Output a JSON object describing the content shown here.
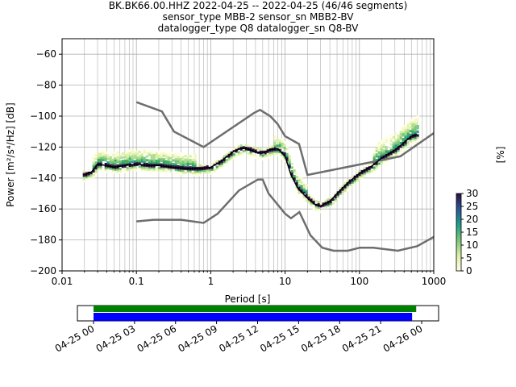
{
  "header": {
    "line1": "BK.BK66.00.HHZ   2022-04-25 -- 2022-04-25  (46/46 segments)",
    "line2": "sensor_type MBB-2 sensor_sn MBB2-BV",
    "line3": "datalogger_type Q8 datalogger_sn Q8-BV"
  },
  "chart_data": [
    {
      "type": "heatmap",
      "xlabel": "Period [s]",
      "ylabel": "Power [m²/s⁴/Hz] [dB]",
      "xscale": "log",
      "xlim": [
        0.01,
        1000
      ],
      "ylim": [
        -200,
        -50
      ],
      "x_ticks": [
        "0.01",
        "0.1",
        "1",
        "10",
        "100",
        "1000"
      ],
      "y_ticks": [
        "−60",
        "−80",
        "−100",
        "−120",
        "−140",
        "−160",
        "−180",
        "−200"
      ],
      "grid": true,
      "colorbar": {
        "label": "[%]",
        "range": [
          0,
          30
        ],
        "ticks": [
          "0",
          "5",
          "10",
          "15",
          "20",
          "25",
          "30"
        ]
      },
      "mean_curve": {
        "x": [
          0.02,
          0.025,
          0.03,
          0.04,
          0.05,
          0.07,
          0.1,
          0.15,
          0.2,
          0.3,
          0.5,
          0.7,
          1,
          1.3,
          2,
          2.5,
          3,
          4,
          5,
          6,
          8,
          10,
          12,
          15,
          20,
          25,
          30,
          40,
          50,
          70,
          100,
          150,
          200,
          300,
          500,
          600
        ],
        "y": [
          -138,
          -136,
          -131,
          -132,
          -133,
          -132,
          -131,
          -132,
          -132,
          -133,
          -134,
          -134,
          -133,
          -130,
          -123,
          -121,
          -121,
          -123,
          -124,
          -122,
          -121,
          -126,
          -138,
          -147,
          -153,
          -157,
          -158,
          -155,
          -150,
          -143,
          -137,
          -132,
          -127,
          -122,
          -113,
          -112
        ]
      },
      "noise_models": {
        "high": {
          "x": [
            0.1,
            0.22,
            0.32,
            0.8,
            3.8,
            4.6,
            6.3,
            7.9,
            10,
            15.4,
            20,
            354.8,
            1000
          ],
          "y": [
            -91,
            -97,
            -110,
            -120,
            -98,
            -96,
            -100,
            -105,
            -113,
            -118,
            -138,
            -126,
            -111
          ]
        },
        "low": {
          "x": [
            0.1,
            0.17,
            0.4,
            0.8,
            1.24,
            2.4,
            4.3,
            5,
            6,
            10,
            12,
            15.6,
            21.9,
            31.6,
            45,
            70,
            101,
            154,
            328,
            600,
            1000
          ],
          "y": [
            -168,
            -167,
            -167,
            -169,
            -163,
            -148,
            -141,
            -141,
            -150,
            -163,
            -166,
            -162,
            -177,
            -185,
            -187,
            -187,
            -185,
            -185,
            -187,
            -184,
            -178
          ]
        }
      }
    },
    {
      "type": "bar",
      "x_ticks": [
        "04-25 00",
        "04-25 03",
        "04-25 06",
        "04-25 09",
        "04-25 12",
        "04-25 15",
        "04-25 18",
        "04-25 21",
        "04-26 00"
      ],
      "series": [
        {
          "color": "#008000",
          "start_hours": 0,
          "end_hours": 23.6
        },
        {
          "color": "#0000ff",
          "start_hours": 0,
          "end_hours": 23.3
        }
      ]
    }
  ]
}
